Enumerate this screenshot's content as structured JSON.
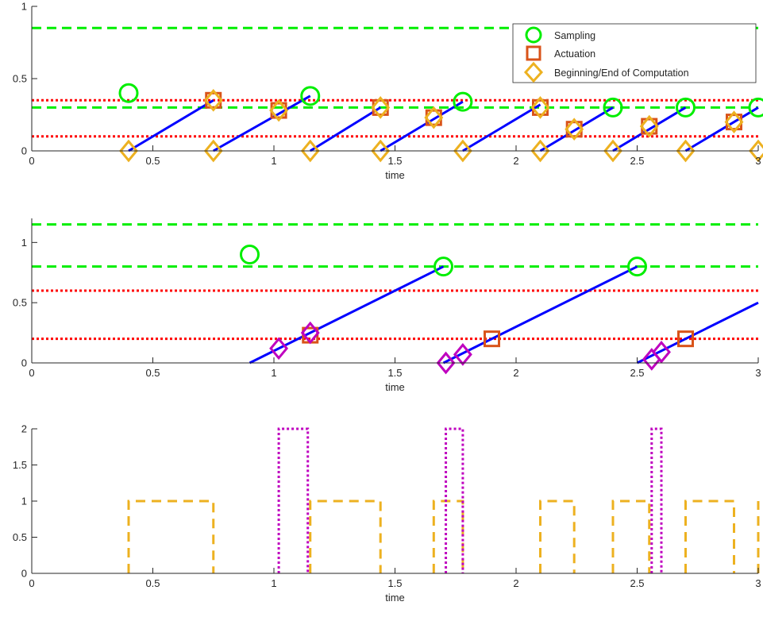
{
  "colors": {
    "sampling": "#00ee00",
    "actuation": "#d95319",
    "computation": "#edb120",
    "computation_edge": "#d95319",
    "period_bounds": "#00ee00",
    "delay_bounds": "#ff0000",
    "ramp": "#0000ff",
    "magenta": "#bf00bf",
    "axis": "#262626"
  },
  "legend": {
    "position": "top-right",
    "entries": [
      {
        "label": "Sampling",
        "marker": "circle",
        "color_key": "sampling"
      },
      {
        "label": "Actuation",
        "marker": "square",
        "color_key": "actuation"
      },
      {
        "label": "Beginning/End of Computation",
        "marker": "diamond",
        "color_key": "computation"
      }
    ]
  },
  "chart_data": [
    {
      "type": "line",
      "xlabel": "time",
      "ylabel": "",
      "xlim": [
        0,
        3
      ],
      "ylim": [
        0,
        1
      ],
      "x_ticks": [
        0,
        0.5,
        1,
        1.5,
        2,
        2.5,
        3
      ],
      "x_tick_labels": [
        "0",
        "0.5",
        "1",
        "1.5",
        "2",
        "2.5",
        "3"
      ],
      "y_ticks": [
        0,
        0.5,
        1
      ],
      "y_tick_labels": [
        "0",
        "0.5",
        "1"
      ],
      "grid": false,
      "hlines_dashed_green": [
        0.3,
        0.85
      ],
      "hlines_dotted_red": [
        0.1,
        0.35
      ],
      "ramps": [
        [
          [
            0.4,
            0
          ],
          [
            0.75,
            0.35
          ]
        ],
        [
          [
            0.75,
            0
          ],
          [
            1.15,
            0.38
          ]
        ],
        [
          [
            1.15,
            0
          ],
          [
            1.44,
            0.3
          ]
        ],
        [
          [
            1.44,
            0
          ],
          [
            1.78,
            0.34
          ]
        ],
        [
          [
            1.78,
            0
          ],
          [
            2.1,
            0.32
          ]
        ],
        [
          [
            2.1,
            0
          ],
          [
            2.4,
            0.3
          ]
        ],
        [
          [
            2.4,
            0
          ],
          [
            2.7,
            0.3
          ]
        ],
        [
          [
            2.7,
            0
          ],
          [
            3.0,
            0.3
          ]
        ]
      ],
      "sampling": [
        [
          0.4,
          0.4
        ],
        [
          1.15,
          0.38
        ],
        [
          1.78,
          0.34
        ],
        [
          2.4,
          0.3
        ],
        [
          2.7,
          0.3
        ],
        [
          3.0,
          0.3
        ]
      ],
      "actuation": [
        [
          0.75,
          0.35
        ],
        [
          1.02,
          0.28
        ],
        [
          1.44,
          0.3
        ],
        [
          1.66,
          0.23
        ],
        [
          2.1,
          0.3
        ],
        [
          2.24,
          0.15
        ],
        [
          2.55,
          0.17
        ],
        [
          2.9,
          0.2
        ]
      ],
      "computation": [
        [
          0.4,
          0
        ],
        [
          0.75,
          0
        ],
        [
          1.15,
          0
        ],
        [
          1.44,
          0
        ],
        [
          1.78,
          0
        ],
        [
          2.1,
          0
        ],
        [
          2.4,
          0
        ],
        [
          2.7,
          0
        ],
        [
          3.0,
          0
        ],
        [
          0.75,
          0.35
        ],
        [
          1.02,
          0.28
        ],
        [
          1.44,
          0.3
        ],
        [
          1.66,
          0.23
        ],
        [
          2.1,
          0.3
        ],
        [
          2.24,
          0.15
        ],
        [
          2.55,
          0.17
        ],
        [
          2.9,
          0.2
        ]
      ]
    },
    {
      "type": "line",
      "xlabel": "time",
      "ylabel": "",
      "xlim": [
        0,
        3
      ],
      "ylim": [
        0,
        1.2
      ],
      "x_ticks": [
        0,
        0.5,
        1,
        1.5,
        2,
        2.5,
        3
      ],
      "x_tick_labels": [
        "0",
        "0.5",
        "1",
        "1.5",
        "2",
        "2.5",
        "3"
      ],
      "y_ticks": [
        0,
        0.5,
        1
      ],
      "y_tick_labels": [
        "0",
        "0.5",
        "1"
      ],
      "grid": false,
      "hlines_dashed_green": [
        0.8,
        1.15
      ],
      "hlines_dotted_red": [
        0.2,
        0.6
      ],
      "ramps": [
        [
          [
            0.9,
            0
          ],
          [
            1.7,
            0.8
          ]
        ],
        [
          [
            1.7,
            0
          ],
          [
            2.5,
            0.8
          ]
        ],
        [
          [
            2.5,
            0
          ],
          [
            3.0,
            0.5
          ]
        ]
      ],
      "sampling": [
        [
          0.9,
          0.9
        ],
        [
          1.7,
          0.8
        ],
        [
          2.5,
          0.8
        ]
      ],
      "actuation": [
        [
          1.9,
          0.2
        ],
        [
          2.7,
          0.2
        ]
      ],
      "actuation_overlaid": [
        [
          1.15,
          0.23
        ]
      ],
      "magenta_diamonds": [
        [
          1.02,
          0.12
        ],
        [
          1.15,
          0.25
        ],
        [
          1.71,
          0
        ],
        [
          1.78,
          0.07
        ],
        [
          2.56,
          0.03
        ],
        [
          2.6,
          0.09
        ]
      ]
    },
    {
      "type": "line",
      "xlabel": "time",
      "ylabel": "",
      "xlim": [
        0,
        3
      ],
      "ylim": [
        0,
        2
      ],
      "x_ticks": [
        0,
        0.5,
        1,
        1.5,
        2,
        2.5,
        3
      ],
      "x_tick_labels": [
        "0",
        "0.5",
        "1",
        "1.5",
        "2",
        "2.5",
        "3"
      ],
      "y_ticks": [
        0,
        0.5,
        1,
        1.5,
        2
      ],
      "y_tick_labels": [
        "0",
        "0.5",
        "1",
        "1.5",
        "2"
      ],
      "grid": false,
      "series": [
        {
          "style": "dashed",
          "color_key": "computation",
          "x": [
            0.4,
            0.4,
            0.75,
            0.75,
            1.15,
            1.15,
            1.44,
            1.44,
            1.66,
            1.66,
            1.78,
            1.78,
            2.1,
            2.1,
            2.24,
            2.24,
            2.4,
            2.4,
            2.55,
            2.55,
            2.7,
            2.7,
            2.9,
            2.9,
            3.0,
            3.0
          ],
          "y": [
            0,
            1,
            1,
            0,
            0,
            1,
            1,
            0,
            0,
            1,
            1,
            0,
            0,
            1,
            1,
            0,
            0,
            1,
            1,
            0,
            0,
            1,
            1,
            0,
            0,
            1
          ]
        },
        {
          "style": "dotted",
          "color_key": "magenta",
          "segments": [
            [
              [
                1.02,
                0
              ],
              [
                1.02,
                2
              ],
              [
                1.14,
                2
              ],
              [
                1.14,
                0
              ]
            ],
            [
              [
                1.71,
                0
              ],
              [
                1.71,
                2
              ],
              [
                1.78,
                2
              ],
              [
                1.78,
                0
              ]
            ],
            [
              [
                2.56,
                0
              ],
              [
                2.56,
                2
              ],
              [
                2.6,
                2
              ],
              [
                2.6,
                0
              ]
            ]
          ]
        }
      ]
    }
  ]
}
